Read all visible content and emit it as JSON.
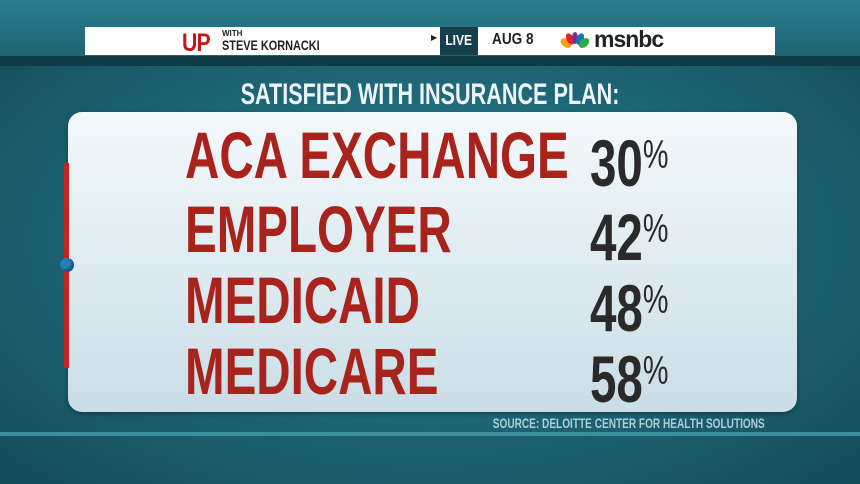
{
  "header": {
    "show_prefix": "UP",
    "show_with": "WITH",
    "show_host": "STEVE KORNACKI",
    "live_label": "LIVE",
    "date": "AUG 8",
    "network": "msnbc",
    "network_logo_icon": "nbc-peacock-icon"
  },
  "title": "SATISFIED WITH INSURANCE PLAN:",
  "rows": [
    {
      "label": "ACA EXCHANGE",
      "value": "30",
      "unit": "%"
    },
    {
      "label": "EMPLOYER",
      "value": "42",
      "unit": "%"
    },
    {
      "label": "MEDICAID",
      "value": "48",
      "unit": "%"
    },
    {
      "label": "MEDICARE",
      "value": "58",
      "unit": "%"
    }
  ],
  "source": "SOURCE: DELOITTE CENTER FOR HEALTH SOLUTIONS",
  "colors": {
    "label": "#a8231c",
    "value": "#2a2a2a",
    "brand_red": "#c4161c",
    "background": "#1f6878"
  }
}
